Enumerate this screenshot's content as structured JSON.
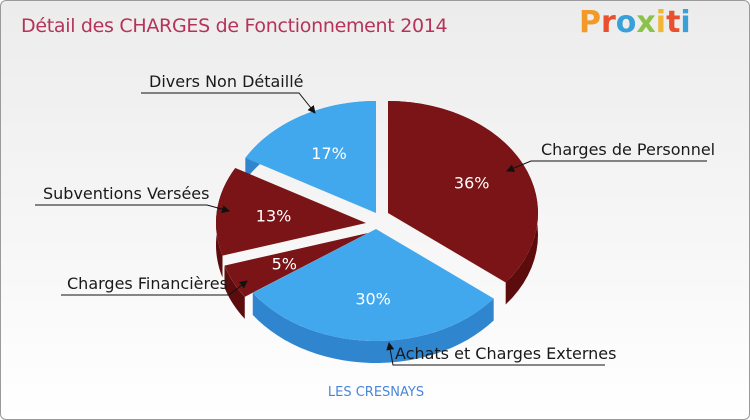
{
  "title": "Détail des CHARGES de Fonctionnement 2014",
  "logo": {
    "text": "Proxiti",
    "letters": [
      "P",
      "r",
      "o",
      "x",
      "i",
      "t",
      "i"
    ],
    "colors": [
      "#f19a2a",
      "#e8502e",
      "#3aa0d8",
      "#8bc34a",
      "#f2b632",
      "#e8502e",
      "#3aa0d8"
    ]
  },
  "footer": "LES CRESNAYS",
  "colors": {
    "blue": "#42a8ee",
    "blue_side": "#2f86cf",
    "red": "#7a1416",
    "red_side": "#5c0c0d",
    "title": "#b5335a"
  },
  "chart_data": {
    "type": "pie",
    "title": "Détail des CHARGES de Fonctionnement 2014",
    "slices": [
      {
        "label": "Charges de Personnel",
        "value": 36,
        "pct_label": "36%",
        "color": "#7a1416"
      },
      {
        "label": "Achats et Charges Externes",
        "value": 30,
        "pct_label": "30%",
        "color": "#42a8ee"
      },
      {
        "label": "Charges Financières",
        "value": 5,
        "pct_label": "5%",
        "color": "#7a1416"
      },
      {
        "label": "Subventions Versées",
        "value": 13,
        "pct_label": "13%",
        "color": "#7a1416"
      },
      {
        "label": "Divers Non Détaillé",
        "value": 17,
        "pct_label": "17%",
        "color": "#42a8ee"
      }
    ]
  }
}
